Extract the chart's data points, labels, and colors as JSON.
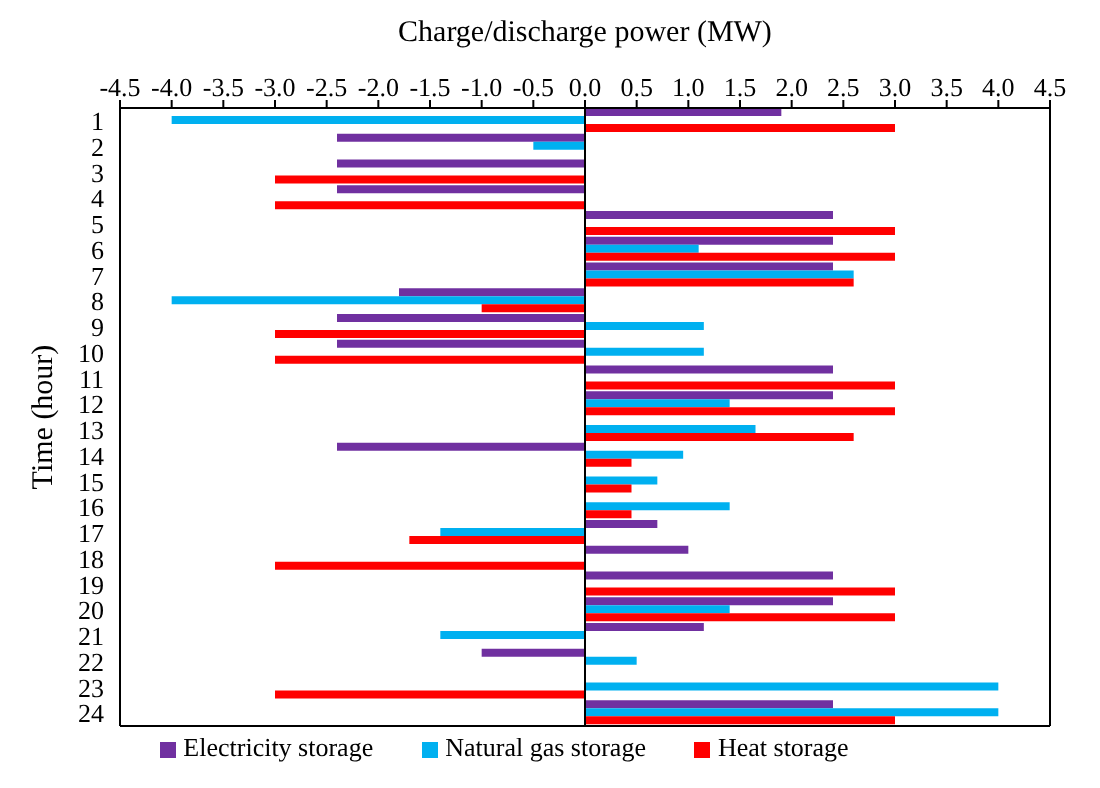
{
  "chart_data": {
    "type": "bar",
    "orientation": "horizontal",
    "xlabel": "Charge/discharge power (MW)",
    "ylabel": "Time (hour)",
    "categories": [
      "1",
      "2",
      "3",
      "4",
      "5",
      "6",
      "7",
      "8",
      "9",
      "10",
      "11",
      "12",
      "13",
      "14",
      "15",
      "16",
      "17",
      "18",
      "19",
      "20",
      "21",
      "22",
      "23",
      "24"
    ],
    "xlim": [
      -4.5,
      4.5
    ],
    "xticks": [
      {
        "value": -4.5,
        "label": "-4.5"
      },
      {
        "value": -4,
        "label": "-4.0"
      },
      {
        "value": -3.5,
        "label": "-3.5"
      },
      {
        "value": -3,
        "label": "-3.0"
      },
      {
        "value": -2.5,
        "label": "-2.5"
      },
      {
        "value": -2,
        "label": "-2.0"
      },
      {
        "value": -1.5,
        "label": "-1.5"
      },
      {
        "value": -1,
        "label": "-1.0"
      },
      {
        "value": -0.5,
        "label": "-0.5"
      },
      {
        "value": 0,
        "label": "0.0"
      },
      {
        "value": 0.5,
        "label": "0.5"
      },
      {
        "value": 1,
        "label": "1.0"
      },
      {
        "value": 1.5,
        "label": "1.5"
      },
      {
        "value": 2,
        "label": "2.0"
      },
      {
        "value": 2.5,
        "label": "2.5"
      },
      {
        "value": 3,
        "label": "3.0"
      },
      {
        "value": 3.5,
        "label": "3.5"
      },
      {
        "value": 4,
        "label": "4.0"
      },
      {
        "value": 4.5,
        "label": "4.5"
      }
    ],
    "grid": false,
    "legend": "bottom",
    "ref_lines": [
      {
        "axis": "x",
        "value": 0,
        "color": "#000000"
      }
    ],
    "series": [
      {
        "name": "Electricity storage",
        "color": "#7030a0",
        "values": [
          1.9,
          -2.4,
          -2.4,
          -2.4,
          2.4,
          2.4,
          2.4,
          -1.8,
          -2.4,
          -2.4,
          2.4,
          2.4,
          0,
          -2.4,
          0,
          0,
          0.7,
          1.0,
          2.4,
          2.4,
          1.15,
          -1.0,
          0,
          2.4
        ]
      },
      {
        "name": "Natural gas storage",
        "color": "#00b0f0",
        "values": [
          -4.0,
          -0.5,
          0,
          0,
          0,
          1.1,
          2.6,
          -4.0,
          1.15,
          1.15,
          0,
          1.4,
          1.65,
          0.95,
          0.7,
          1.4,
          -1.4,
          0,
          0,
          1.4,
          -1.4,
          0.5,
          4.0,
          4.0
        ]
      },
      {
        "name": "Heat storage",
        "color": "#ff0000",
        "values": [
          3.0,
          0,
          -3.0,
          -3.0,
          3.0,
          3.0,
          2.6,
          -1.0,
          -3.0,
          -3.0,
          3.0,
          3.0,
          2.6,
          0.45,
          0.45,
          0.45,
          -1.7,
          -3.0,
          3.0,
          3.0,
          0,
          0,
          -3.0,
          3.0
        ]
      }
    ]
  }
}
